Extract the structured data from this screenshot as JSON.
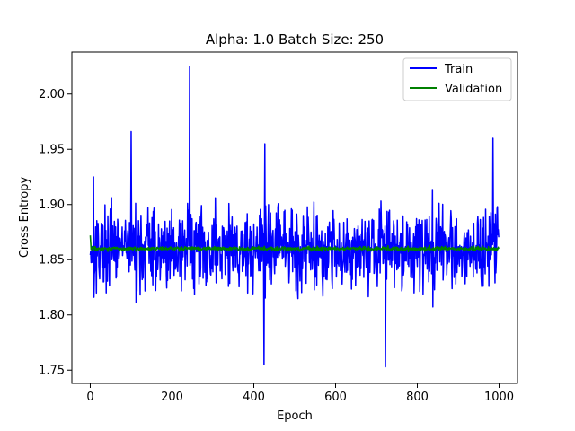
{
  "chart_data": {
    "type": "line",
    "title": "Alpha: 1.0 Batch Size: 250",
    "xlabel": "Epoch",
    "ylabel": "Cross Entropy",
    "xlim": [
      -45,
      1045
    ],
    "ylim": [
      1.738,
      2.038
    ],
    "xticks": [
      0,
      200,
      400,
      600,
      800,
      1000
    ],
    "xtick_labels": [
      "0",
      "200",
      "400",
      "600",
      "800",
      "1000"
    ],
    "yticks": [
      1.75,
      1.8,
      1.85,
      1.9,
      1.95,
      2.0
    ],
    "ytick_labels": [
      "1.75",
      "1.80",
      "1.85",
      "1.90",
      "1.95",
      "2.00"
    ],
    "grid": false,
    "legend_position": "top-right",
    "series": [
      {
        "name": "Train",
        "color": "#0000ff",
        "n_points": 1000,
        "mean": 1.86,
        "spread": 0.04,
        "min": 1.753,
        "max": 2.025,
        "peaks": [
          [
            243,
            2.025
          ],
          [
            8,
            1.925
          ],
          [
            100,
            1.966
          ],
          [
            427,
            1.955
          ],
          [
            722,
            1.753
          ],
          [
            425,
            1.755
          ],
          [
            985,
            1.96
          ]
        ]
      },
      {
        "name": "Validation",
        "color": "#008000",
        "n_points": 1000,
        "mean": 1.86,
        "spread": 0.002,
        "min": 1.857,
        "max": 1.872,
        "peaks": [
          [
            0,
            1.872
          ],
          [
            1,
            1.866
          ]
        ]
      }
    ]
  }
}
